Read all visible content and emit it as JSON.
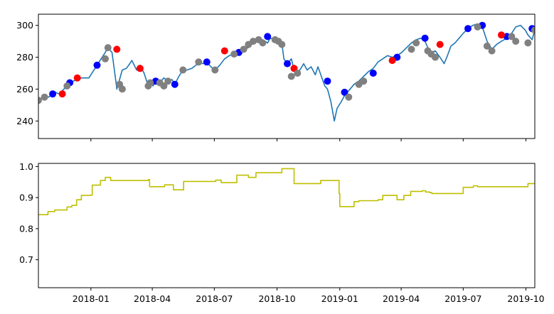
{
  "chart_data": [
    {
      "type": "line+scatter",
      "title": "",
      "xlabel": "",
      "ylabel": "",
      "x_range": [
        "2017-10-16",
        "2019-10-14"
      ],
      "ylim": [
        229,
        307
      ],
      "y_ticks": [
        240,
        260,
        280,
        300
      ],
      "x_ticks": [
        "2018-01-01",
        "2018-04-01",
        "2018-07-01",
        "2018-10-01",
        "2019-01-01",
        "2019-04-01",
        "2019-07-01",
        "2019-10-01"
      ],
      "x_tick_labels_visible": false,
      "grid": false,
      "legend": "none",
      "colors": {
        "line": "#1f77b4",
        "buy": "#ff0000",
        "sell": "#0000ff",
        "hold": "#808080"
      },
      "series": [
        {
          "role": "price",
          "x": [
            "2017-10-16",
            "2017-10-20",
            "2017-10-25",
            "2017-10-31",
            "2017-11-06",
            "2017-11-10",
            "2017-11-15",
            "2017-11-20",
            "2017-11-27",
            "2017-12-01",
            "2017-12-06",
            "2017-12-12",
            "2017-12-18",
            "2017-12-22",
            "2017-12-29",
            "2018-01-04",
            "2018-01-10",
            "2018-01-16",
            "2018-01-22",
            "2018-01-26",
            "2018-02-01",
            "2018-02-05",
            "2018-02-08",
            "2018-02-12",
            "2018-02-16",
            "2018-02-22",
            "2018-02-27",
            "2018-03-02",
            "2018-03-09",
            "2018-03-14",
            "2018-03-20",
            "2018-03-26",
            "2018-03-29",
            "2018-04-02",
            "2018-04-06",
            "2018-04-12",
            "2018-04-18",
            "2018-04-24",
            "2018-04-30",
            "2018-05-04",
            "2018-05-10",
            "2018-05-16",
            "2018-05-22",
            "2018-05-29",
            "2018-06-04",
            "2018-06-08",
            "2018-06-14",
            "2018-06-20",
            "2018-06-26",
            "2018-07-02",
            "2018-07-09",
            "2018-07-16",
            "2018-07-23",
            "2018-07-30",
            "2018-08-06",
            "2018-08-13",
            "2018-08-20",
            "2018-08-27",
            "2018-09-04",
            "2018-09-10",
            "2018-09-17",
            "2018-09-21",
            "2018-09-28",
            "2018-10-03",
            "2018-10-08",
            "2018-10-11",
            "2018-10-16",
            "2018-10-22",
            "2018-10-26",
            "2018-10-31",
            "2018-11-05",
            "2018-11-09",
            "2018-11-14",
            "2018-11-20",
            "2018-11-26",
            "2018-11-30",
            "2018-12-05",
            "2018-12-10",
            "2018-12-14",
            "2018-12-19",
            "2018-12-24",
            "2018-12-28",
            "2019-01-03",
            "2019-01-08",
            "2019-01-14",
            "2019-01-22",
            "2019-01-29",
            "2019-02-05",
            "2019-02-12",
            "2019-02-19",
            "2019-02-26",
            "2019-03-05",
            "2019-03-12",
            "2019-03-19",
            "2019-03-26",
            "2019-04-02",
            "2019-04-09",
            "2019-04-16",
            "2019-04-23",
            "2019-04-30",
            "2019-05-06",
            "2019-05-10",
            "2019-05-15",
            "2019-05-21",
            "2019-05-28",
            "2019-06-03",
            "2019-06-07",
            "2019-06-13",
            "2019-06-19",
            "2019-06-25",
            "2019-07-01",
            "2019-07-08",
            "2019-07-15",
            "2019-07-22",
            "2019-07-29",
            "2019-08-05",
            "2019-08-12",
            "2019-08-19",
            "2019-08-26",
            "2019-09-03",
            "2019-09-10",
            "2019-09-16",
            "2019-09-23",
            "2019-09-30",
            "2019-10-04",
            "2019-10-10",
            "2019-10-14"
          ],
          "y": [
            252,
            254,
            256,
            255,
            257,
            258,
            257,
            259,
            262,
            264,
            265,
            266,
            267,
            267,
            267,
            271,
            275,
            279,
            283,
            286,
            283,
            270,
            260,
            266,
            272,
            273,
            276,
            278,
            272,
            275,
            270,
            262,
            264,
            262,
            265,
            264,
            267,
            265,
            266,
            263,
            268,
            272,
            272,
            273,
            275,
            277,
            276,
            277,
            274,
            272,
            275,
            279,
            281,
            282,
            283,
            285,
            286,
            289,
            290,
            291,
            289,
            292,
            291,
            290,
            289,
            279,
            276,
            279,
            272,
            270,
            273,
            276,
            272,
            274,
            269,
            274,
            268,
            262,
            260,
            252,
            240,
            248,
            252,
            256,
            259,
            263,
            265,
            268,
            271,
            273,
            277,
            279,
            281,
            280,
            281,
            283,
            286,
            289,
            291,
            292,
            290,
            286,
            283,
            284,
            280,
            276,
            280,
            287,
            289,
            292,
            295,
            298,
            300,
            301,
            299,
            290,
            285,
            288,
            290,
            292,
            295,
            299,
            300,
            297,
            294,
            291,
            297
          ]
        },
        {
          "role": "sell-markers",
          "x": [
            "2017-11-06",
            "2017-12-01",
            "2018-01-10",
            "2018-04-06",
            "2018-05-04",
            "2018-06-20",
            "2018-08-06",
            "2018-09-17",
            "2018-10-16",
            "2018-12-14",
            "2019-01-08",
            "2019-02-19",
            "2019-03-26",
            "2019-05-06",
            "2019-07-08",
            "2019-07-29",
            "2019-09-03",
            "2019-10-10"
          ],
          "y": [
            257,
            264,
            275,
            265,
            263,
            277,
            283,
            293,
            276,
            265,
            258,
            270,
            280,
            292,
            298,
            300,
            293,
            298
          ]
        },
        {
          "role": "buy-markers",
          "x": [
            "2017-11-20",
            "2017-12-12",
            "2018-02-08",
            "2018-03-14",
            "2018-07-16",
            "2018-10-26",
            "2019-03-19",
            "2019-05-28",
            "2019-08-26"
          ],
          "y": [
            257,
            267,
            285,
            273,
            284,
            273,
            278,
            288,
            294
          ]
        },
        {
          "role": "hold-markers",
          "x": [
            "2017-10-16",
            "2017-10-25",
            "2017-11-27",
            "2018-01-22",
            "2018-01-26",
            "2018-02-12",
            "2018-02-16",
            "2018-03-26",
            "2018-03-29",
            "2018-04-12",
            "2018-04-18",
            "2018-04-24",
            "2018-05-16",
            "2018-06-08",
            "2018-07-02",
            "2018-07-30",
            "2018-08-13",
            "2018-08-20",
            "2018-08-27",
            "2018-09-04",
            "2018-09-10",
            "2018-09-28",
            "2018-10-03",
            "2018-10-08",
            "2018-10-22",
            "2018-10-31",
            "2019-01-14",
            "2019-01-29",
            "2019-02-05",
            "2019-04-16",
            "2019-04-23",
            "2019-05-10",
            "2019-05-15",
            "2019-05-21",
            "2019-07-22",
            "2019-08-05",
            "2019-08-12",
            "2019-09-10",
            "2019-09-16",
            "2019-10-04",
            "2019-10-14"
          ],
          "y": [
            253,
            255,
            262,
            279,
            286,
            263,
            260,
            262,
            264,
            264,
            262,
            265,
            272,
            277,
            272,
            282,
            285,
            288,
            290,
            291,
            289,
            291,
            290,
            288,
            268,
            270,
            255,
            263,
            265,
            285,
            289,
            284,
            282,
            280,
            299,
            287,
            284,
            293,
            290,
            289,
            297
          ]
        }
      ]
    },
    {
      "type": "line",
      "title": "",
      "xlabel": "",
      "ylabel": "",
      "x_range": [
        "2017-10-16",
        "2019-10-14"
      ],
      "ylim": [
        0.61,
        1.01
      ],
      "y_ticks": [
        0.7,
        0.8,
        0.9,
        1.0
      ],
      "y_tick_labels": [
        "0.7",
        "0.8",
        "0.9",
        "1.0"
      ],
      "x_ticks": [
        "2018-01-01",
        "2018-04-01",
        "2018-07-01",
        "2018-10-01",
        "2019-01-01",
        "2019-04-01",
        "2019-07-01",
        "2019-10-01"
      ],
      "x_tick_labels": [
        "2018-01",
        "2018-04",
        "2018-07",
        "2018-10",
        "2019-01",
        "2019-04",
        "2019-07",
        "2019-10"
      ],
      "grid": false,
      "legend": "none",
      "step": true,
      "colors": {
        "line": "#bfbf00"
      },
      "series": [
        {
          "x": [
            "2017-10-16",
            "2017-10-30",
            "2017-11-09",
            "2017-11-20",
            "2017-11-27",
            "2017-12-04",
            "2017-12-11",
            "2017-12-18",
            "2018-01-01",
            "2018-01-03",
            "2018-01-15",
            "2018-01-22",
            "2018-01-30",
            "2018-02-02",
            "2018-02-08",
            "2018-03-26",
            "2018-03-28",
            "2018-04-19",
            "2018-04-30",
            "2018-05-02",
            "2018-05-07",
            "2018-05-17",
            "2018-06-04",
            "2018-06-20",
            "2018-07-03",
            "2018-07-11",
            "2018-07-30",
            "2018-08-03",
            "2018-08-20",
            "2018-08-31",
            "2018-10-08",
            "2018-10-13",
            "2018-10-26",
            "2018-12-04",
            "2018-12-31",
            "2019-01-01",
            "2019-01-08",
            "2019-01-22",
            "2019-01-29",
            "2019-02-26",
            "2019-03-05",
            "2019-03-13",
            "2019-03-26",
            "2019-04-05",
            "2019-04-15",
            "2019-05-02",
            "2019-05-07",
            "2019-05-13",
            "2019-05-16",
            "2019-06-07",
            "2019-06-24",
            "2019-07-01",
            "2019-07-16",
            "2019-07-22",
            "2019-09-11",
            "2019-10-04",
            "2019-10-14"
          ],
          "y": [
            0.845,
            0.855,
            0.86,
            0.86,
            0.87,
            0.875,
            0.893,
            0.907,
            0.908,
            0.94,
            0.955,
            0.965,
            0.955,
            0.955,
            0.955,
            0.958,
            0.935,
            0.941,
            0.941,
            0.925,
            0.925,
            0.952,
            0.952,
            0.952,
            0.956,
            0.948,
            0.948,
            0.972,
            0.965,
            0.98,
            0.993,
            0.993,
            0.945,
            0.955,
            0.913,
            0.871,
            0.871,
            0.887,
            0.89,
            0.893,
            0.907,
            0.907,
            0.893,
            0.907,
            0.92,
            0.922,
            0.918,
            0.916,
            0.913,
            0.913,
            0.913,
            0.933,
            0.938,
            0.935,
            0.935,
            0.945,
            0.945
          ]
        }
      ]
    }
  ]
}
